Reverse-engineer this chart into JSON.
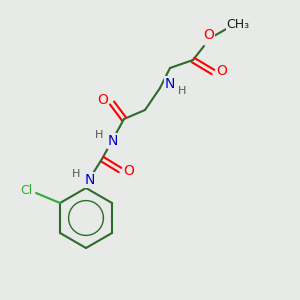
{
  "background_color": "#e8eae8",
  "bond_color": "#2d6b2d",
  "atom_colors": {
    "O": "#ff0000",
    "N": "#0000cc",
    "Cl": "#33aa33",
    "C": "#1a1a1a",
    "H": "#555555"
  },
  "figsize": [
    3.0,
    3.0
  ],
  "dpi": 100
}
